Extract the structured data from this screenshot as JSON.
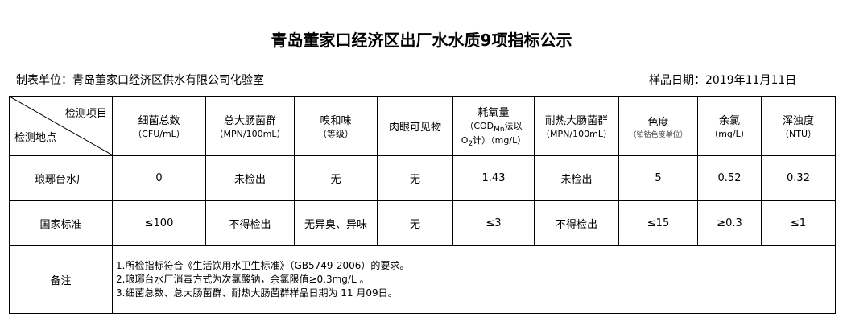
{
  "title": "青岛董家口经济区出厂水水质9项指标公示",
  "unit": "制表单位：青岛董家口经济区供水有限公司化验室",
  "sample_date": "样品日期：2019年11月11日",
  "corner": {
    "item": "检测项目",
    "site": "检测地点"
  },
  "headers": [
    {
      "name": "细菌总数",
      "unit": "（CFU/mL）"
    },
    {
      "name": "总大肠菌群",
      "unit": "（MPN/100mL）"
    },
    {
      "name": "嗅和味",
      "unit": "（等级）"
    },
    {
      "name": "肉眼可见物",
      "unit": ""
    },
    {
      "name": "耗氧量",
      "unit": "（COD",
      "sub": "Mn",
      "unit2": "法以",
      "unit3": "O",
      "sub2": "2",
      "unit4": "计）（mg/L）"
    },
    {
      "name": "耐热大肠菌群",
      "unit": "（MPN/100mL）"
    },
    {
      "name": "色度",
      "unit": "（铂钴色度单位）"
    },
    {
      "name": "余氯",
      "unit": "（mg/L）"
    },
    {
      "name": "浑浊度",
      "unit": "（NTU）"
    }
  ],
  "rows": [
    {
      "site": "琅琊台水厂",
      "values": [
        "0",
        "未检出",
        "无",
        "无",
        "1.43",
        "未检出",
        "5",
        "0.52",
        "0.32"
      ]
    },
    {
      "site": "国家标准",
      "values": [
        "≤100",
        "不得检出",
        "无异臭、异味",
        "无",
        "≤3",
        "不得检出",
        "≤15",
        "≥0.3",
        "≤1"
      ]
    }
  ],
  "notes": {
    "label": "备注",
    "lines": [
      "1.所检指标符合《生活饮用水卫生标准》（GB5749-2006）的要求。",
      "2.琅琊台水厂消毒方式为次氯酸钠，余氯限值≥0.3mg/L 。",
      "3.细菌总数、总大肠菌群、耐热大肠菌群样品日期为 11 月09日。"
    ]
  }
}
